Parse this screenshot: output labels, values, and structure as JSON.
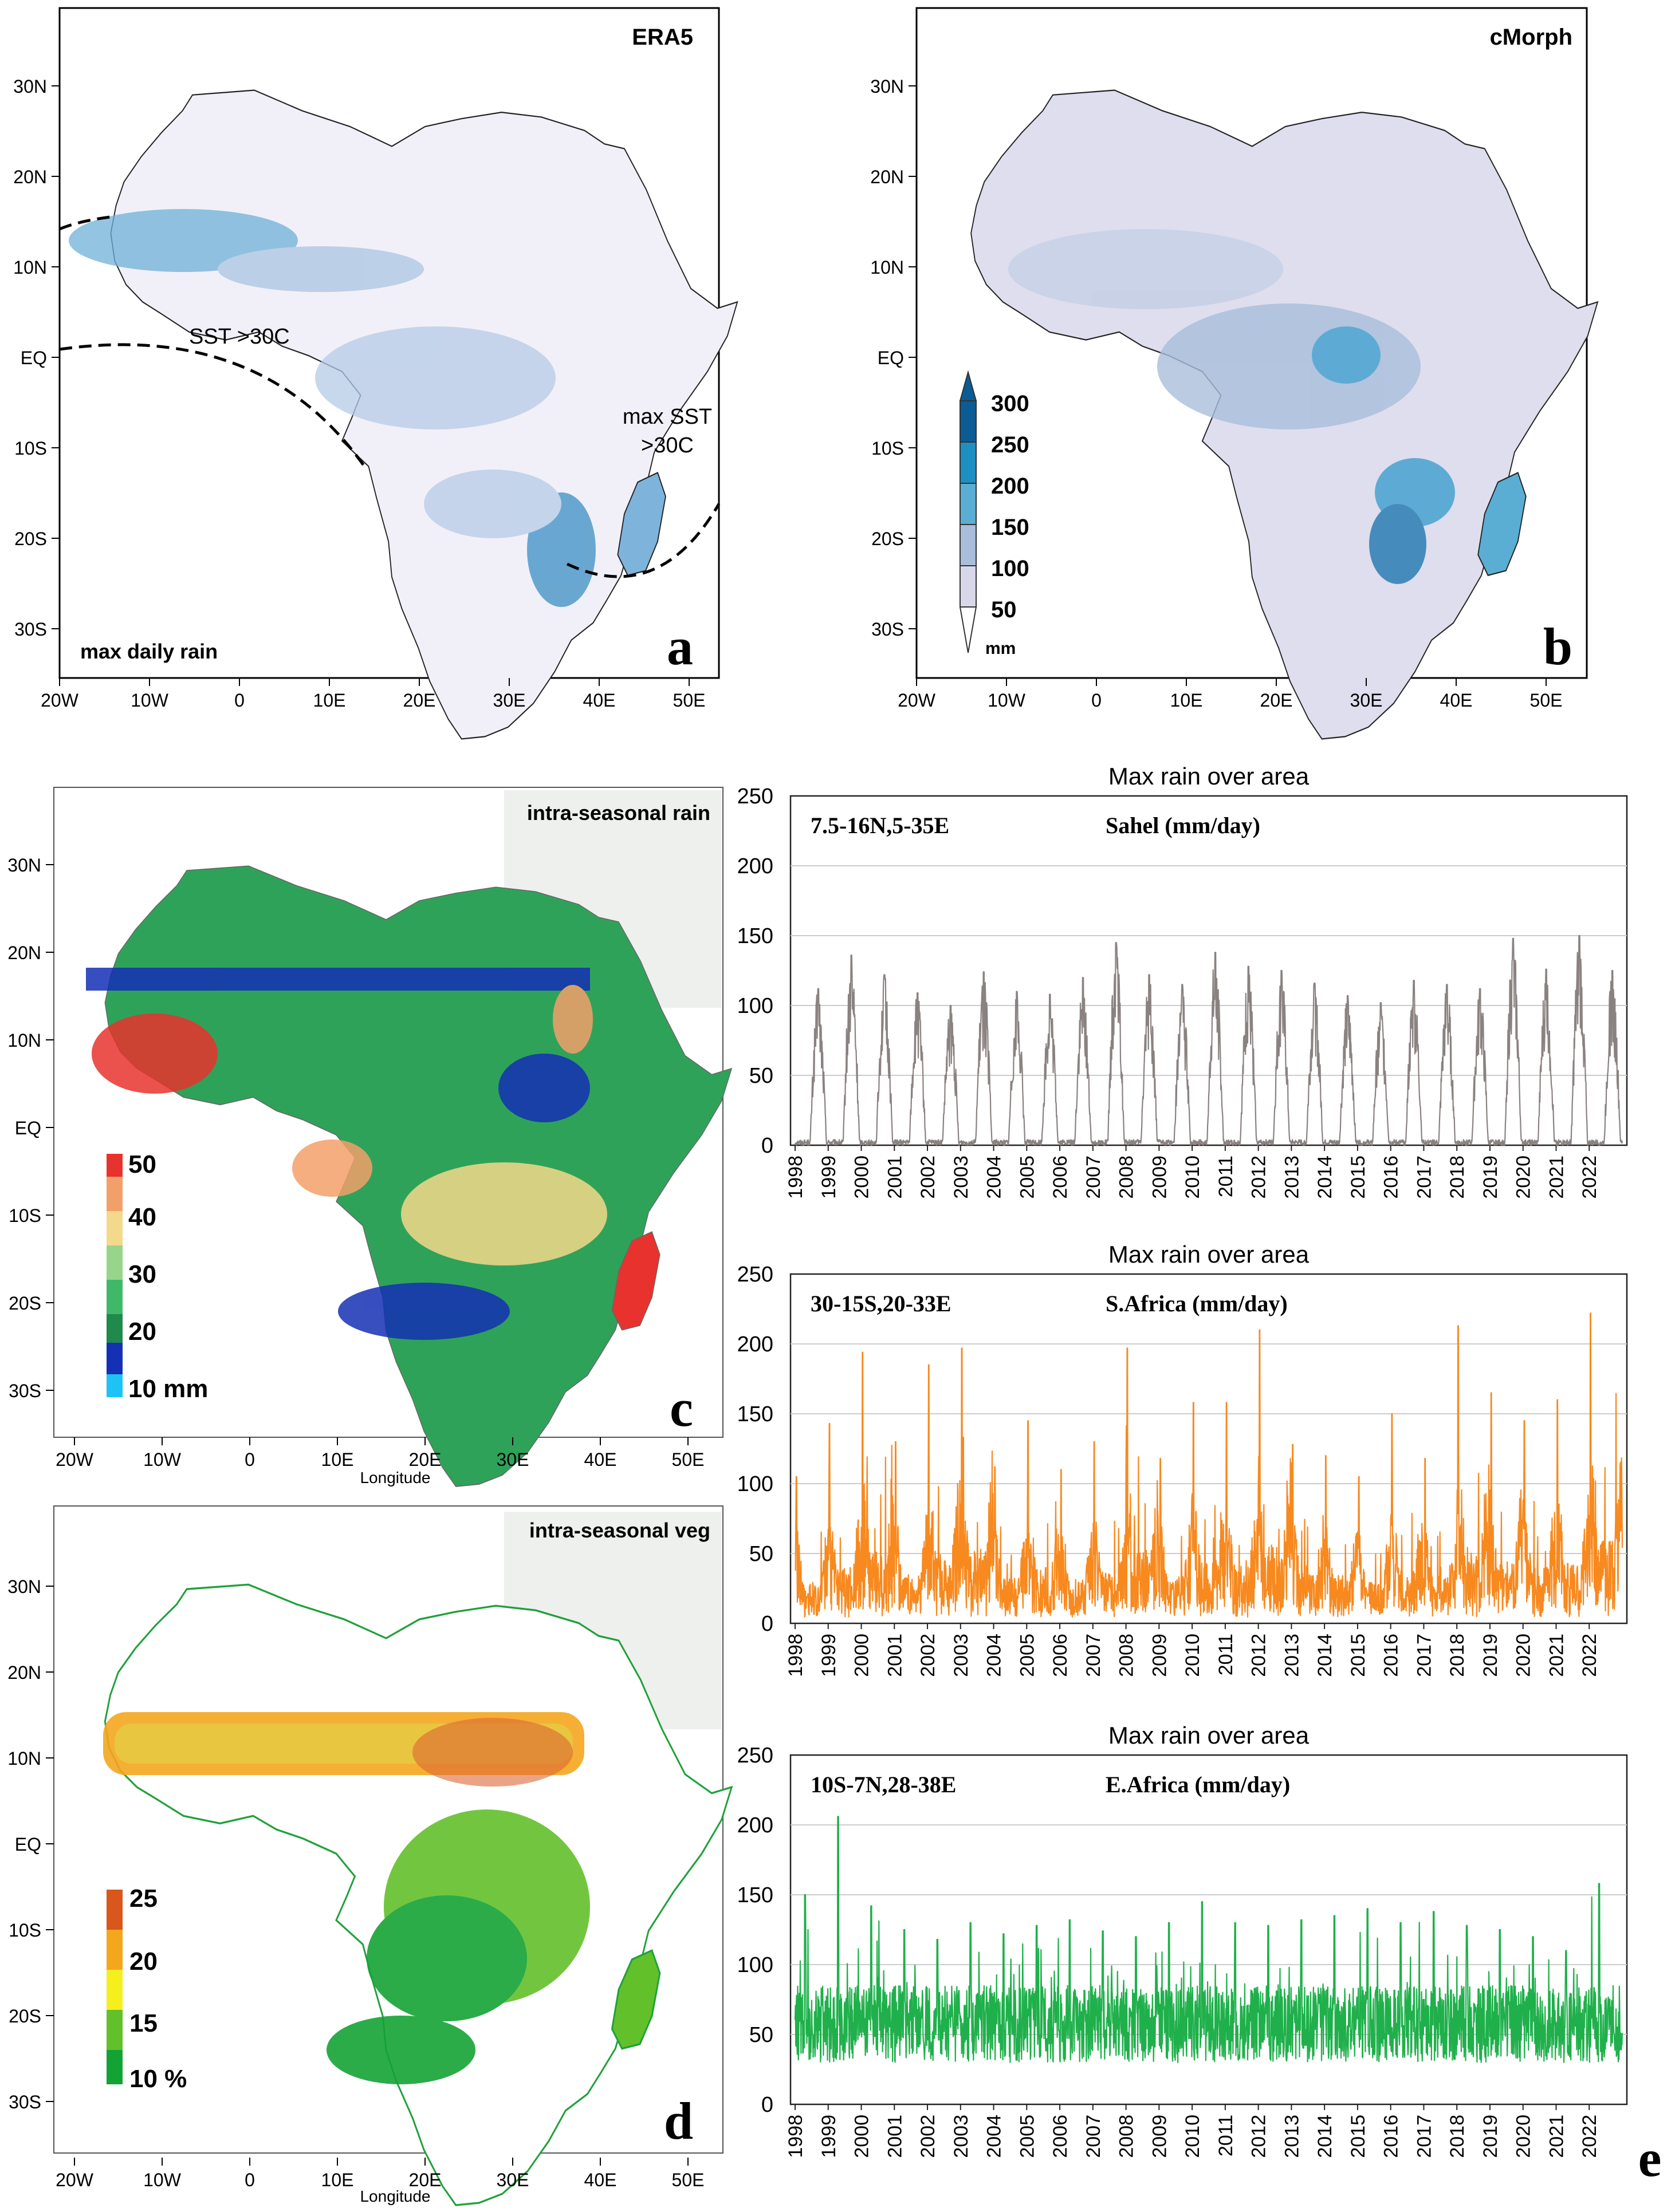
{
  "colors": {
    "frame": "#000000",
    "land_base": "#f1f0f8",
    "sahel_series": "#8a8280",
    "safrica_series": "#f7891f",
    "eafrica_series": "#1fb04b",
    "grid": "#cccccc",
    "rain_scale": [
      "#f4f3fa",
      "#d8d7ea",
      "#a9bedb",
      "#5aaed3",
      "#1e8fc3",
      "#0b5b94"
    ],
    "intra_rain_scale": [
      "#1ec3f5",
      "#1430b4",
      "#1f8a4b",
      "#3fb86a",
      "#97d58a",
      "#f3d98a",
      "#f2a06a",
      "#e8322e"
    ],
    "veg_scale": [
      "#13a335",
      "#62c02a",
      "#f6ef1e",
      "#f4a61d",
      "#d9561c"
    ]
  },
  "map_ticks": {
    "lat_labels": [
      "30N",
      "20N",
      "10N",
      "EQ",
      "10S",
      "20S",
      "30S"
    ],
    "lon_labels": [
      "20W",
      "10W",
      "0",
      "10E",
      "20E",
      "30E",
      "40E",
      "50E"
    ],
    "xlabel": "Longitude"
  },
  "panel_a": {
    "label": "a",
    "source": "ERA5",
    "bottom_text": "max daily rain",
    "ann_sst": "SST >30C",
    "ann_max_sst_1": "max SST",
    "ann_max_sst_2": ">30C"
  },
  "panel_b": {
    "label": "b",
    "source": "cMorph",
    "legend_values": [
      "300",
      "250",
      "200",
      "150",
      "100",
      "50"
    ],
    "legend_unit": "mm"
  },
  "panel_c": {
    "label": "c",
    "source": "intra-seasonal rain",
    "legend_values": [
      "50",
      "40",
      "30",
      "20",
      "10 mm"
    ]
  },
  "panel_d": {
    "label": "d",
    "source": "intra-seasonal veg",
    "legend_values": [
      "25",
      "20",
      "15",
      "10 %"
    ]
  },
  "panel_e": {
    "label": "e"
  },
  "chart_data": [
    {
      "type": "line",
      "title": "Max rain over area",
      "region": "7.5-16N,5-35E",
      "name": "Sahel (mm/day)",
      "ylim": [
        0,
        250
      ],
      "yticks": [
        0,
        50,
        100,
        150,
        200,
        250
      ],
      "grid": true,
      "categories": [
        "1998",
        "1999",
        "2000",
        "2001",
        "2002",
        "2003",
        "2004",
        "2005",
        "2006",
        "2007",
        "2008",
        "2009",
        "2010",
        "2011",
        "2012",
        "2013",
        "2014",
        "2015",
        "2016",
        "2017",
        "2018",
        "2019",
        "2020",
        "2021",
        "2022"
      ],
      "annual_peaks": [
        112,
        136,
        122,
        109,
        100,
        124,
        110,
        108,
        120,
        145,
        122,
        115,
        138,
        128,
        125,
        116,
        107,
        102,
        118,
        115,
        112,
        148,
        126,
        150,
        125
      ],
      "pattern": "seasonal"
    },
    {
      "type": "line",
      "title": "Max rain over area",
      "region": "30-15S,20-33E",
      "name": "S.Africa (mm/day)",
      "ylim": [
        0,
        250
      ],
      "yticks": [
        0,
        50,
        100,
        150,
        200,
        250
      ],
      "grid": true,
      "categories": [
        "1998",
        "1999",
        "2000",
        "2001",
        "2002",
        "2003",
        "2004",
        "2005",
        "2006",
        "2007",
        "2008",
        "2009",
        "2010",
        "2011",
        "2012",
        "2013",
        "2014",
        "2015",
        "2016",
        "2017",
        "2018",
        "2019",
        "2020",
        "2021",
        "2022"
      ],
      "annual_peaks": [
        105,
        143,
        194,
        130,
        185,
        197,
        112,
        145,
        110,
        130,
        197,
        118,
        158,
        158,
        210,
        128,
        120,
        105,
        150,
        118,
        213,
        165,
        145,
        160,
        222
      ],
      "pattern": "seasonal"
    },
    {
      "type": "line",
      "title": "Max rain over area",
      "region": "10S-7N,28-38E",
      "name": "E.Africa (mm/day)",
      "ylim": [
        0,
        250
      ],
      "yticks": [
        0,
        50,
        100,
        150,
        200,
        250
      ],
      "grid": true,
      "categories": [
        "1998",
        "1999",
        "2000",
        "2001",
        "2002",
        "2003",
        "2004",
        "2005",
        "2006",
        "2007",
        "2008",
        "2009",
        "2010",
        "2011",
        "2012",
        "2013",
        "2014",
        "2015",
        "2016",
        "2017",
        "2018",
        "2019",
        "2020",
        "2021",
        "2022"
      ],
      "annual_peaks": [
        150,
        206,
        142,
        125,
        118,
        130,
        122,
        128,
        132,
        124,
        120,
        130,
        145,
        130,
        128,
        132,
        135,
        140,
        130,
        138,
        128,
        125,
        120,
        110,
        158
      ],
      "pattern": "noisy"
    }
  ]
}
